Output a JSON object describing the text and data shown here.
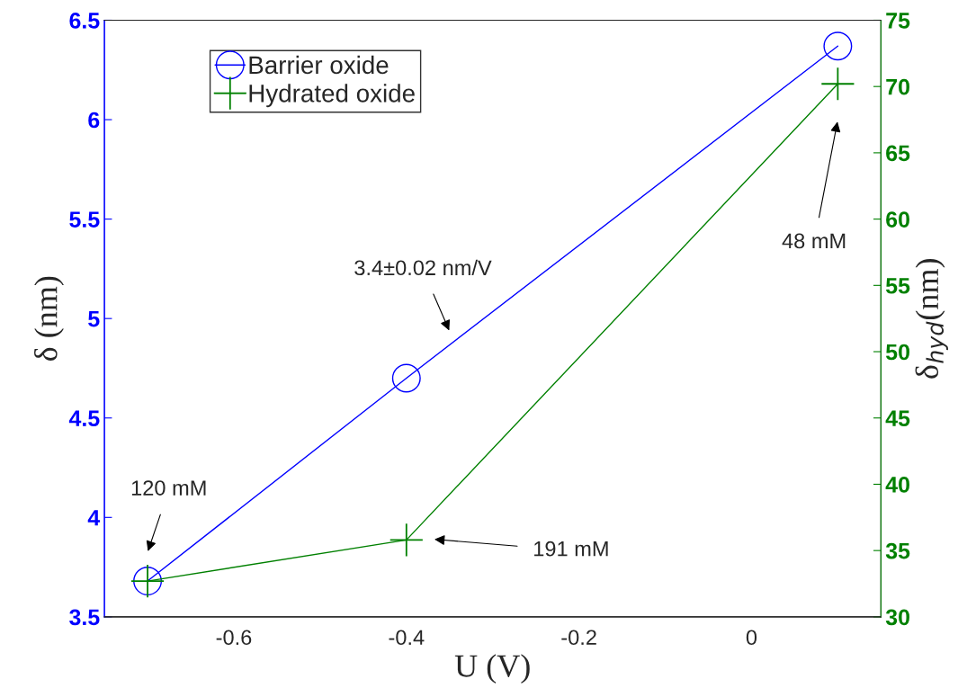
{
  "chart_data": {
    "type": "line",
    "xlabel": "U (V)",
    "ylabel": "δ (nm)",
    "y2label": "δ$_{hyd}$(nm)",
    "x": [
      -0.7,
      -0.4,
      0.1
    ],
    "series": [
      {
        "name": "Barrier oxide",
        "color": "#0000ff",
        "values": [
          3.68,
          4.7,
          6.37
        ],
        "marker": "circle"
      },
      {
        "name": "Hydrated oxide",
        "color": "#008000",
        "values": [
          32.7,
          35.8,
          70.2
        ],
        "marker": "cross",
        "axis": "y2"
      }
    ],
    "xlim": [
      -0.75,
      0.15
    ],
    "xticks": [
      -0.6,
      -0.4,
      -0.2,
      0
    ],
    "ylim": [
      3.5,
      6.5
    ],
    "yticks": [
      3.5,
      4,
      4.5,
      5,
      5.5,
      6,
      6.5
    ],
    "y2lim": [
      30,
      75
    ],
    "y2ticks": [
      30,
      35,
      40,
      45,
      50,
      55,
      60,
      65,
      70,
      75
    ],
    "annotations": [
      "120 mM",
      "3.4±0.02 nm/V",
      "191 mM",
      "48 mM"
    ],
    "legend": "top left",
    "grid": false
  }
}
